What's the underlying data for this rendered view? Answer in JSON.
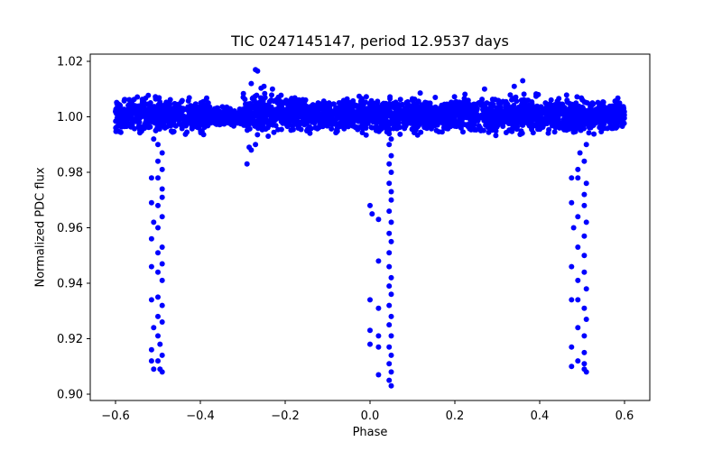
{
  "chart_data": {
    "type": "scatter",
    "title": "TIC 0247145147, period 12.9537 days",
    "xlabel": "Phase",
    "ylabel": "Normalized PDC flux",
    "xlim": [
      -0.65,
      0.65
    ],
    "ylim": [
      0.898,
      1.023
    ],
    "xticks": [
      -0.6,
      -0.4,
      -0.2,
      0.0,
      0.2,
      0.4,
      0.6
    ],
    "xtick_labels": [
      "−0.6",
      "−0.4",
      "−0.2",
      "0.0",
      "0.2",
      "0.4",
      "0.6"
    ],
    "yticks": [
      0.9,
      0.92,
      0.94,
      0.96,
      0.98,
      1.0,
      1.02
    ],
    "ytick_labels": [
      "0.90",
      "0.92",
      "0.94",
      "0.96",
      "0.98",
      "1.00",
      "1.02"
    ],
    "grid": false,
    "legend": null,
    "marker_color": "#0000ff",
    "series": [
      {
        "name": "out-of-transit band",
        "description": "dense band of points around flux 1.000 spanning full phase range",
        "segments": [
          {
            "x_range": [
              -0.6,
              -0.38
            ],
            "center": 1.0005,
            "half_width": 0.0085
          },
          {
            "x_range": [
              -0.38,
              -0.3
            ],
            "center": 1.0,
            "half_width": 0.0045
          },
          {
            "x_range": [
              -0.3,
              -0.15
            ],
            "center": 1.0015,
            "half_width": 0.0095
          },
          {
            "x_range": [
              -0.15,
              0.6
            ],
            "center": 1.0005,
            "half_width": 0.0085
          }
        ],
        "outliers": [
          [
            -0.27,
            1.017
          ],
          [
            -0.265,
            1.0165
          ],
          [
            -0.28,
            1.012
          ],
          [
            -0.25,
            1.011
          ],
          [
            -0.23,
            1.01
          ],
          [
            -0.29,
            0.983
          ],
          [
            -0.285,
            0.989
          ],
          [
            -0.28,
            0.988
          ],
          [
            -0.27,
            0.99
          ],
          [
            -0.24,
            0.993
          ],
          [
            -0.505,
            0.995
          ],
          [
            -0.51,
            0.992
          ],
          [
            0.36,
            1.013
          ],
          [
            0.34,
            1.011
          ],
          [
            0.27,
            1.01
          ]
        ]
      },
      {
        "name": "primary eclipse near phase -0.5",
        "points": [
          [
            -0.5,
            0.99
          ],
          [
            -0.49,
            0.987
          ],
          [
            -0.5,
            0.984
          ],
          [
            -0.49,
            0.981
          ],
          [
            -0.515,
            0.978
          ],
          [
            -0.5,
            0.978
          ],
          [
            -0.49,
            0.974
          ],
          [
            -0.49,
            0.971
          ],
          [
            -0.515,
            0.969
          ],
          [
            -0.5,
            0.968
          ],
          [
            -0.49,
            0.964
          ],
          [
            -0.51,
            0.962
          ],
          [
            -0.5,
            0.96
          ],
          [
            -0.515,
            0.956
          ],
          [
            -0.49,
            0.953
          ],
          [
            -0.5,
            0.951
          ],
          [
            -0.49,
            0.947
          ],
          [
            -0.515,
            0.946
          ],
          [
            -0.5,
            0.944
          ],
          [
            -0.49,
            0.941
          ],
          [
            -0.515,
            0.934
          ],
          [
            -0.5,
            0.935
          ],
          [
            -0.49,
            0.932
          ],
          [
            -0.5,
            0.928
          ],
          [
            -0.49,
            0.926
          ],
          [
            -0.51,
            0.924
          ],
          [
            -0.5,
            0.921
          ],
          [
            -0.515,
            0.916
          ],
          [
            -0.495,
            0.918
          ],
          [
            -0.49,
            0.914
          ],
          [
            -0.515,
            0.912
          ],
          [
            -0.5,
            0.912
          ],
          [
            -0.51,
            0.909
          ],
          [
            -0.495,
            0.909
          ],
          [
            -0.49,
            0.908
          ]
        ]
      },
      {
        "name": "primary eclipse near phase 0.05",
        "points": [
          [
            0.03,
            0.996
          ],
          [
            0.05,
            0.992
          ],
          [
            0.045,
            0.99
          ],
          [
            0.05,
            0.986
          ],
          [
            0.045,
            0.983
          ],
          [
            0.05,
            0.98
          ],
          [
            0.045,
            0.976
          ],
          [
            0.05,
            0.973
          ],
          [
            0.05,
            0.97
          ],
          [
            0.0,
            0.968
          ],
          [
            0.005,
            0.965
          ],
          [
            0.045,
            0.966
          ],
          [
            0.05,
            0.962
          ],
          [
            0.02,
            0.963
          ],
          [
            0.045,
            0.958
          ],
          [
            0.05,
            0.955
          ],
          [
            0.045,
            0.951
          ],
          [
            0.02,
            0.948
          ],
          [
            0.045,
            0.946
          ],
          [
            0.05,
            0.942
          ],
          [
            0.045,
            0.939
          ],
          [
            0.05,
            0.936
          ],
          [
            0.0,
            0.934
          ],
          [
            0.02,
            0.931
          ],
          [
            0.045,
            0.932
          ],
          [
            0.05,
            0.928
          ],
          [
            0.045,
            0.925
          ],
          [
            0.0,
            0.923
          ],
          [
            0.02,
            0.921
          ],
          [
            0.05,
            0.921
          ],
          [
            0.045,
            0.917
          ],
          [
            0.05,
            0.914
          ],
          [
            0.0,
            0.918
          ],
          [
            0.02,
            0.917
          ],
          [
            0.045,
            0.911
          ],
          [
            0.05,
            0.908
          ],
          [
            0.02,
            0.907
          ],
          [
            0.045,
            0.905
          ],
          [
            0.05,
            0.903
          ]
        ]
      },
      {
        "name": "primary eclipse near phase 0.5",
        "points": [
          [
            0.51,
            0.99
          ],
          [
            0.495,
            0.987
          ],
          [
            0.505,
            0.984
          ],
          [
            0.49,
            0.981
          ],
          [
            0.475,
            0.978
          ],
          [
            0.49,
            0.978
          ],
          [
            0.51,
            0.976
          ],
          [
            0.505,
            0.972
          ],
          [
            0.475,
            0.969
          ],
          [
            0.505,
            0.968
          ],
          [
            0.49,
            0.964
          ],
          [
            0.51,
            0.962
          ],
          [
            0.48,
            0.96
          ],
          [
            0.505,
            0.957
          ],
          [
            0.49,
            0.953
          ],
          [
            0.505,
            0.95
          ],
          [
            0.475,
            0.946
          ],
          [
            0.505,
            0.944
          ],
          [
            0.49,
            0.941
          ],
          [
            0.51,
            0.938
          ],
          [
            0.475,
            0.934
          ],
          [
            0.49,
            0.934
          ],
          [
            0.505,
            0.931
          ],
          [
            0.51,
            0.927
          ],
          [
            0.49,
            0.924
          ],
          [
            0.505,
            0.921
          ],
          [
            0.475,
            0.917
          ],
          [
            0.505,
            0.915
          ],
          [
            0.49,
            0.912
          ],
          [
            0.505,
            0.911
          ],
          [
            0.475,
            0.91
          ],
          [
            0.505,
            0.909
          ],
          [
            0.51,
            0.908
          ]
        ]
      }
    ]
  }
}
